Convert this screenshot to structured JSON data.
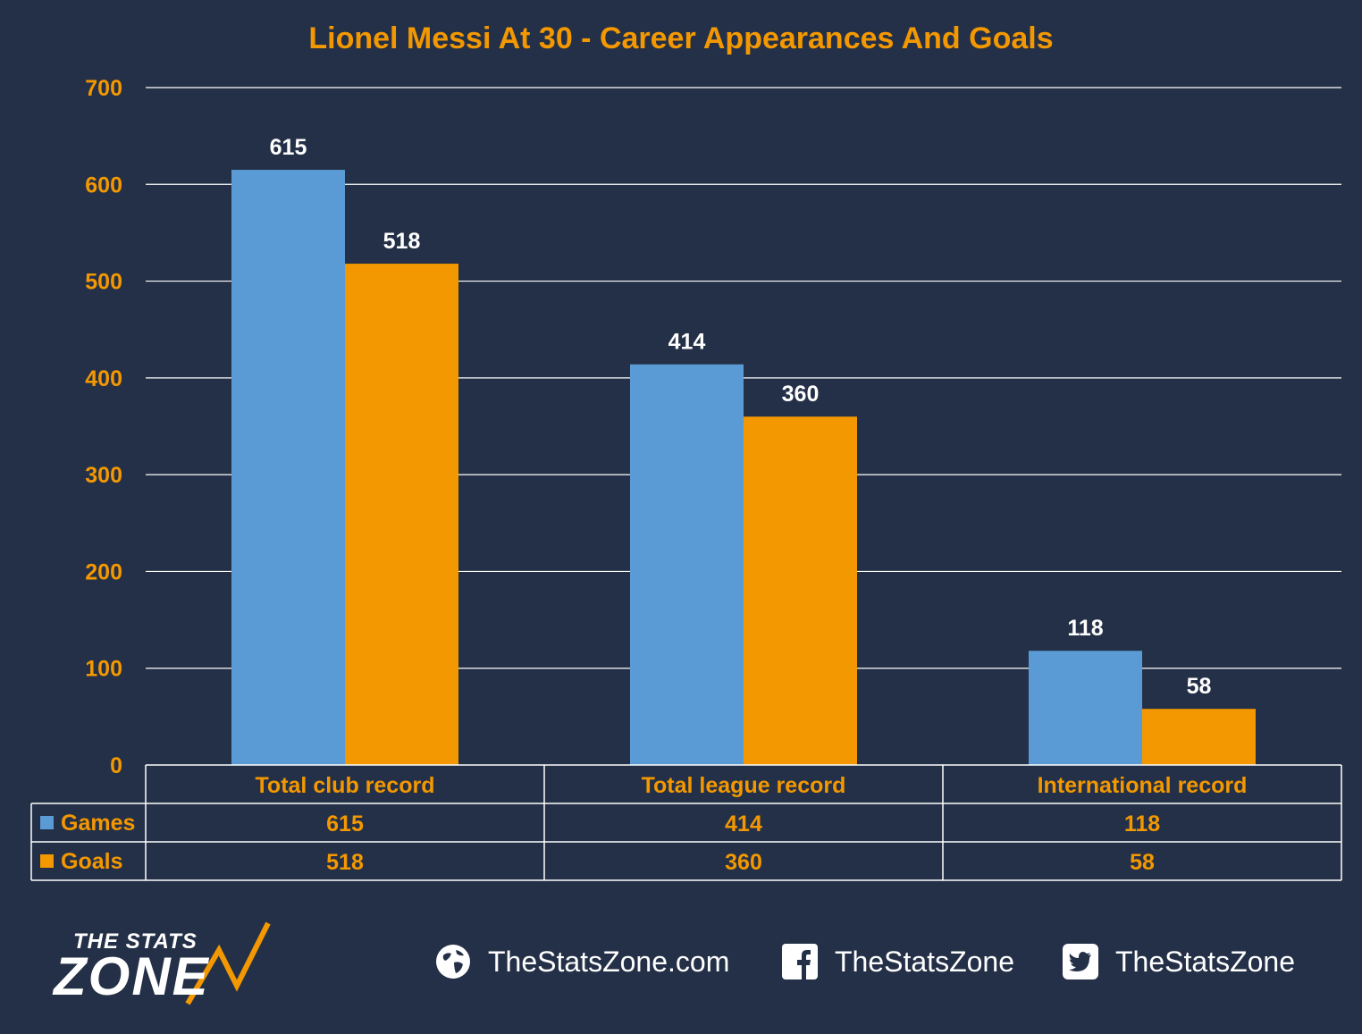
{
  "chart_data": {
    "type": "bar",
    "title": "Lionel Messi At 30 - Career Appearances And Goals",
    "categories": [
      "Total club record",
      "Total league record",
      "International record"
    ],
    "series": [
      {
        "name": "Games",
        "values": [
          615,
          414,
          118
        ],
        "color": "#5b9bd5"
      },
      {
        "name": "Goals",
        "values": [
          518,
          360,
          58
        ],
        "color": "#f39800"
      }
    ],
    "ylim": [
      0,
      700
    ],
    "yticks": [
      0,
      100,
      200,
      300,
      400,
      500,
      600,
      700
    ],
    "grid": true,
    "legend": "data-table",
    "data_labels": true
  },
  "colors": {
    "background": "#243047",
    "accent": "#f39800",
    "gridline": "#ffffff"
  },
  "footer": {
    "logo_top": "THE STATS",
    "logo_main": "ZONE",
    "website": "TheStatsZone.com",
    "facebook": "TheStatsZone",
    "twitter": "TheStatsZone",
    "website_icon": "globe-icon",
    "facebook_icon": "facebook-icon",
    "twitter_icon": "twitter-icon"
  }
}
